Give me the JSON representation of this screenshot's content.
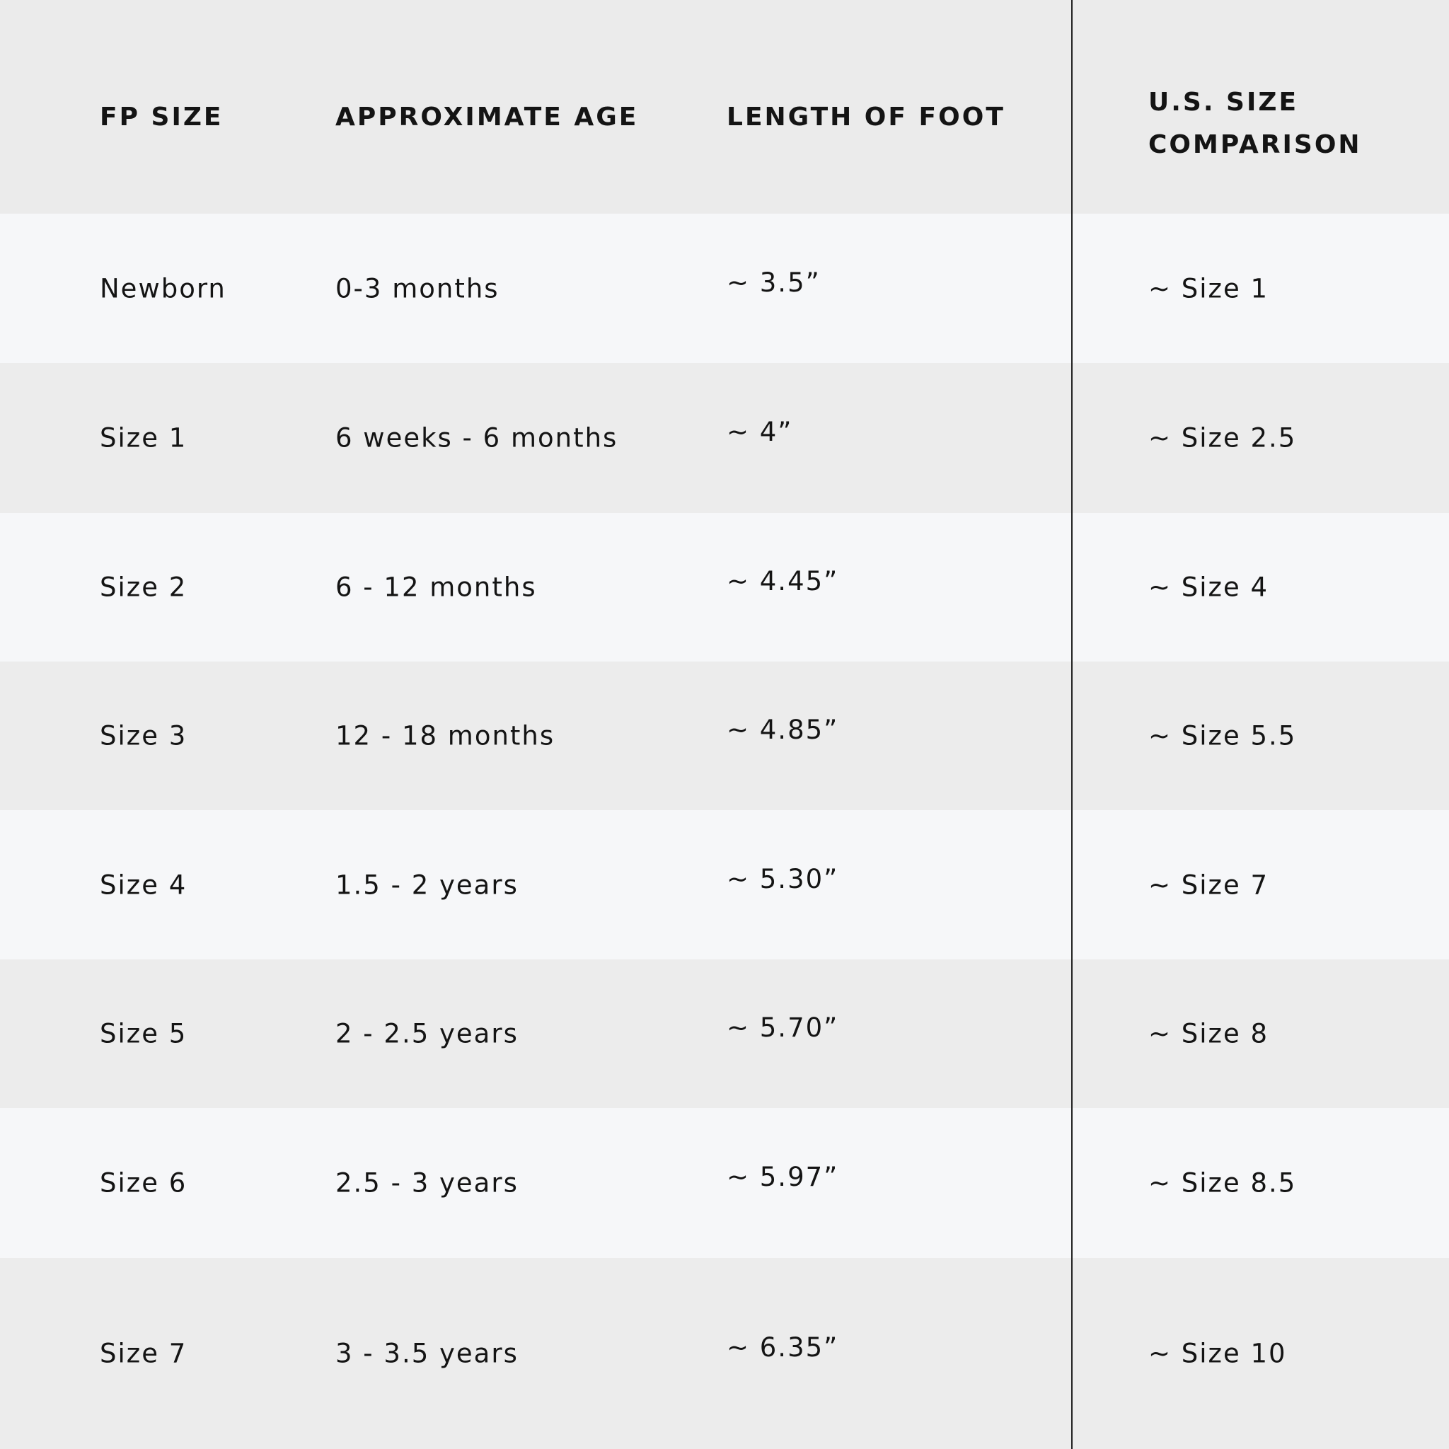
{
  "table": {
    "headers": [
      "FP SIZE",
      "APPROXIMATE AGE",
      "LENGTH OF FOOT",
      "U.S. SIZE COMPARISON"
    ],
    "header_us_lines": [
      "U.S. SIZE",
      "COMPARISON"
    ],
    "rows": [
      [
        "Newborn",
        "0-3 months",
        "~ 3.5”",
        "~ Size 1"
      ],
      [
        "Size 1",
        "6 weeks - 6 months",
        "~ 4”",
        "~ Size 2.5"
      ],
      [
        "Size 2",
        "6 - 12 months",
        "~ 4.45”",
        "~ Size 4"
      ],
      [
        "Size 3",
        "12 - 18 months",
        "~ 4.85”",
        "~ Size 5.5"
      ],
      [
        "Size 4",
        "1.5 - 2 years",
        "~ 5.30”",
        "~ Size 7"
      ],
      [
        "Size 5",
        "2 - 2.5 years",
        "~ 5.70”",
        "~ Size 8"
      ],
      [
        "Size 6",
        "2.5 - 3 years",
        "~ 5.97”",
        "~ Size 8.5"
      ],
      [
        "Size 7",
        "3 - 3.5 years",
        "~ 6.35”",
        "~ Size 10"
      ]
    ]
  },
  "colors": {
    "header_bg": "#ebebeb",
    "row_light": "#f6f7f9",
    "row_dark": "#ececec",
    "text": "#141414",
    "divider": "#222222"
  }
}
